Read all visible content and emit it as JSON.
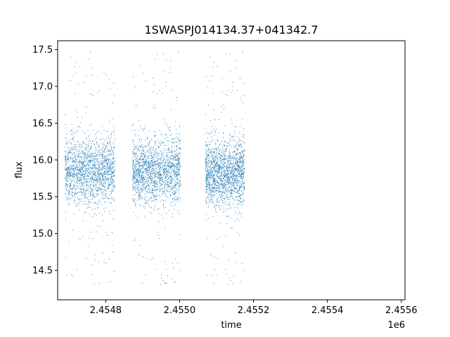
{
  "chart_data": {
    "type": "scatter",
    "title": "1SWASPJ014134.37+041342.7",
    "xlabel": "time",
    "ylabel": "flux",
    "x_offset_label": "1e6",
    "xlim": [
      2454670,
      2455610
    ],
    "ylim": [
      14.1,
      17.62
    ],
    "x_ticks": [
      2454800,
      2455000,
      2455200,
      2455400,
      2455600
    ],
    "x_tick_labels": [
      "2.4548",
      "2.4550",
      "2.4552",
      "2.4554",
      "2.4556"
    ],
    "y_ticks": [
      14.5,
      15.0,
      15.5,
      16.0,
      16.5,
      17.0,
      17.5
    ],
    "y_tick_labels": [
      "14.5",
      "15.0",
      "15.5",
      "16.0",
      "16.5",
      "17.0",
      "17.5"
    ],
    "grid": false,
    "marker_color": "#1f77b4",
    "series": [
      {
        "segments": [
          {
            "x_start": 2454690,
            "x_end": 2454825,
            "median": 15.85,
            "spread": 0.22
          },
          {
            "x_start": 2454872,
            "x_end": 2455003,
            "median": 15.85,
            "spread": 0.22
          },
          {
            "x_start": 2455070,
            "x_end": 2455176,
            "median": 15.82,
            "spread": 0.22
          }
        ],
        "min": 14.27,
        "max": 17.47
      }
    ]
  }
}
